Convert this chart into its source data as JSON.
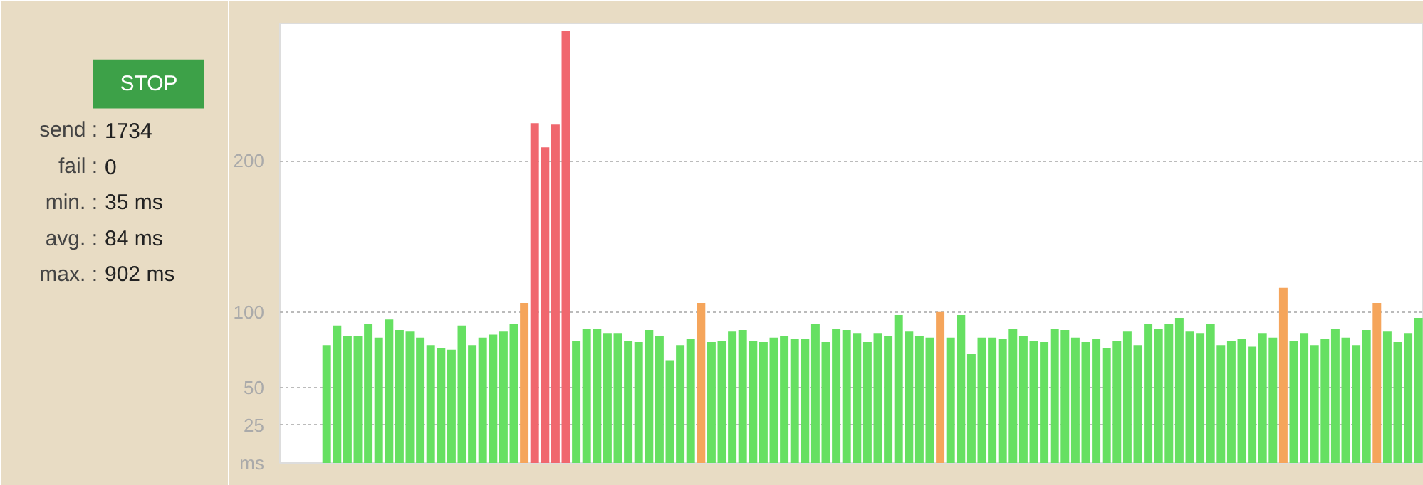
{
  "chart_data": [
    {
      "type": "other",
      "annotations": [
        "STOP",
        "send : 1734",
        "fail : 0",
        "min. : 35 ms",
        "avg. : 84 ms",
        "max. : 902 ms"
      ]
    },
    {
      "type": "bar",
      "categories": [
        null,
        null,
        null,
        null,
        null,
        null,
        null,
        null,
        null,
        null,
        null,
        null,
        null,
        null,
        null,
        null,
        null,
        null,
        null,
        null,
        null,
        null,
        null,
        null,
        null,
        null,
        null,
        null,
        null,
        null,
        null,
        null,
        null,
        null,
        null,
        null,
        null,
        null,
        null,
        null,
        null,
        null,
        null,
        null,
        null,
        null,
        null,
        null,
        null,
        null,
        null,
        null,
        null,
        null,
        null,
        null,
        null,
        null,
        null,
        null,
        null,
        null,
        null,
        null,
        null,
        null,
        null,
        null,
        null,
        null,
        null,
        null,
        null,
        null,
        null,
        null,
        null,
        null,
        null,
        null,
        null,
        null,
        null,
        null,
        null,
        null,
        null,
        null,
        null,
        null,
        null,
        null,
        null,
        null,
        null,
        null,
        null,
        null,
        null,
        null,
        null,
        null,
        null,
        null,
        null,
        null
      ],
      "values": [
        78,
        91,
        84,
        84,
        92,
        83,
        95,
        88,
        87,
        83,
        78,
        76,
        75,
        91,
        78,
        83,
        85,
        87,
        92,
        106,
        225,
        209,
        224,
        286,
        81,
        89,
        89,
        86,
        86,
        81,
        80,
        88,
        84,
        68,
        78,
        82,
        106,
        80,
        81,
        87,
        88,
        81,
        80,
        83,
        84,
        82,
        82,
        92,
        80,
        89,
        88,
        86,
        80,
        86,
        84,
        98,
        87,
        84,
        83,
        100,
        83,
        98,
        72,
        83,
        83,
        82,
        89,
        84,
        81,
        80,
        89,
        88,
        83,
        80,
        82,
        76,
        81,
        87,
        78,
        92,
        89,
        92,
        96,
        87,
        86,
        92,
        78,
        81,
        82,
        77,
        86,
        83,
        116,
        81,
        86,
        78,
        82,
        89,
        83,
        78,
        88,
        106,
        87,
        80,
        86,
        96
      ],
      "colors": [
        "#66e062",
        "#66e062",
        "#66e062",
        "#66e062",
        "#66e062",
        "#66e062",
        "#66e062",
        "#66e062",
        "#66e062",
        "#66e062",
        "#66e062",
        "#66e062",
        "#66e062",
        "#66e062",
        "#66e062",
        "#66e062",
        "#66e062",
        "#66e062",
        "#66e062",
        "#f5a55b",
        "#f0676e",
        "#f0676e",
        "#f0676e",
        "#f0676e",
        "#66e062",
        "#66e062",
        "#66e062",
        "#66e062",
        "#66e062",
        "#66e062",
        "#66e062",
        "#66e062",
        "#66e062",
        "#66e062",
        "#66e062",
        "#66e062",
        "#f5a55b",
        "#66e062",
        "#66e062",
        "#66e062",
        "#66e062",
        "#66e062",
        "#66e062",
        "#66e062",
        "#66e062",
        "#66e062",
        "#66e062",
        "#66e062",
        "#66e062",
        "#66e062",
        "#66e062",
        "#66e062",
        "#66e062",
        "#66e062",
        "#66e062",
        "#66e062",
        "#66e062",
        "#66e062",
        "#66e062",
        "#f5a55b",
        "#66e062",
        "#66e062",
        "#66e062",
        "#66e062",
        "#66e062",
        "#66e062",
        "#66e062",
        "#66e062",
        "#66e062",
        "#66e062",
        "#66e062",
        "#66e062",
        "#66e062",
        "#66e062",
        "#66e062",
        "#66e062",
        "#66e062",
        "#66e062",
        "#66e062",
        "#66e062",
        "#66e062",
        "#66e062",
        "#66e062",
        "#66e062",
        "#66e062",
        "#66e062",
        "#66e062",
        "#66e062",
        "#66e062",
        "#66e062",
        "#66e062",
        "#66e062",
        "#f5a55b",
        "#66e062",
        "#66e062",
        "#66e062",
        "#66e062",
        "#66e062",
        "#66e062",
        "#66e062",
        "#66e062",
        "#f5a55b",
        "#66e062",
        "#66e062",
        "#66e062",
        "#66e062"
      ],
      "ylim": [
        0,
        291
      ],
      "yticks": [
        {
          "value": 0,
          "label": "ms"
        },
        25,
        50,
        100,
        200
      ],
      "grid": "y"
    }
  ]
}
